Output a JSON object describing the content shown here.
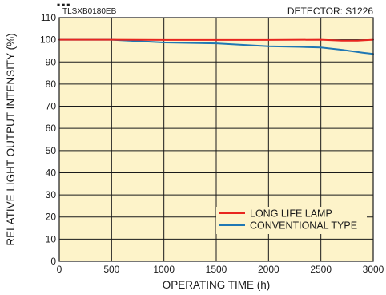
{
  "chart_data": {
    "type": "line",
    "title_fragment": "...",
    "doc_code": "TLSXB0180EB",
    "detector": "DETECTOR: S1226",
    "xlabel": "OPERATING TIME (h)",
    "ylabel": "RELATIVE LIGHT OUTPUT INTENSITY (%)",
    "xlim": [
      0,
      3000
    ],
    "ylim": [
      0,
      110
    ],
    "xticks": [
      0,
      500,
      1000,
      1500,
      2000,
      2500,
      3000
    ],
    "yticks": [
      0,
      10,
      20,
      30,
      40,
      50,
      60,
      70,
      80,
      90,
      100,
      110
    ],
    "grid": true,
    "legend_position": "lower-right",
    "plot_background": "#fdf3c9",
    "series": [
      {
        "name": "LONG LIFE LAMP",
        "color": "#e8251f",
        "x": [
          0,
          500,
          1000,
          1500,
          2000,
          2500,
          2700,
          2850,
          3000
        ],
        "y": [
          100,
          100,
          99.9,
          99.9,
          99.9,
          100,
          99.6,
          99.6,
          100
        ]
      },
      {
        "name": "CONVENTIONAL TYPE",
        "color": "#1f77b4",
        "x": [
          0,
          500,
          1000,
          1500,
          2000,
          2300,
          2500,
          2700,
          2900,
          3000
        ],
        "y": [
          100,
          100,
          98.8,
          98.4,
          97.1,
          96.8,
          96.5,
          95.5,
          94.2,
          93.6
        ]
      }
    ]
  }
}
